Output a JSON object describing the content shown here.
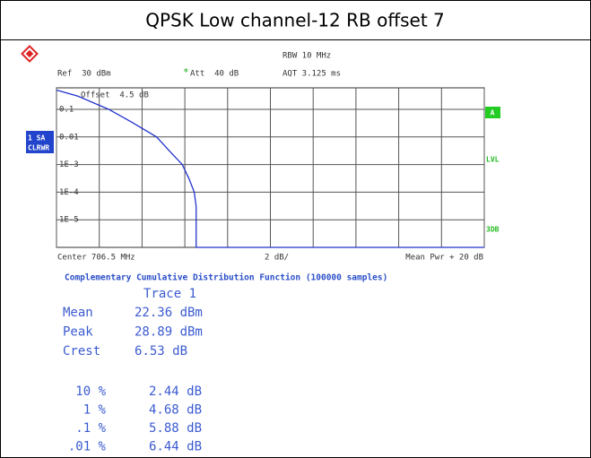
{
  "header": {
    "title": "QPSK Low channel-12 RB offset 7"
  },
  "instrument": {
    "ref": "Ref  30 dBm",
    "att_marker": "*",
    "att": "Att  40 dB",
    "rbw": "RBW 10 MHz",
    "aqt": "AQT 3.125 ms",
    "offset": "Offset  4.5 dB",
    "trace_mode": [
      "1 SA",
      "CLRWR"
    ],
    "markers": [
      "A",
      "LVL",
      "3DB"
    ],
    "center": "Center 706.5 MHz",
    "scale": "2 dB/",
    "span": "Mean Pwr + 20 dB"
  },
  "chart_data": {
    "type": "line",
    "log_y": true,
    "grid": true,
    "x": [
      0,
      1,
      2.44,
      3.5,
      4.68,
      5.3,
      5.88,
      6.2,
      6.44,
      6.53,
      6.53,
      20
    ],
    "series": [
      {
        "color": "#2233cc",
        "values": [
          0.5,
          0.3,
          0.1,
          0.035,
          0.01,
          0.003,
          0.001,
          0.0003,
          0.0001,
          3e-05,
          1e-06,
          1e-06
        ]
      }
    ],
    "xlim": [
      0,
      20
    ],
    "ylim": [
      1e-06,
      0.6
    ],
    "xticks": [
      0,
      2,
      4,
      6,
      8,
      10,
      12,
      14,
      16,
      18,
      20
    ],
    "yticks": [
      0.1,
      0.01,
      {
        "value": 0.001,
        "label": "1E-3"
      },
      {
        "value": 0.0001,
        "label": "1E-4"
      },
      {
        "value": 1e-05,
        "label": "1E-5"
      }
    ]
  },
  "results": {
    "title": "Complementary Cumulative Distribution Function (100000 samples)",
    "trace": "Trace 1",
    "stats": [
      [
        "Mean",
        "22.36 dBm"
      ],
      [
        "Peak",
        "28.89 dBm"
      ],
      [
        "Crest",
        "6.53 dB"
      ]
    ],
    "percentiles": [
      [
        "10 %",
        "2.44 dB"
      ],
      [
        "1 %",
        "4.68 dB"
      ],
      [
        ".1 %",
        "5.88 dB"
      ],
      [
        ".01 %",
        "6.44 dB"
      ]
    ]
  }
}
